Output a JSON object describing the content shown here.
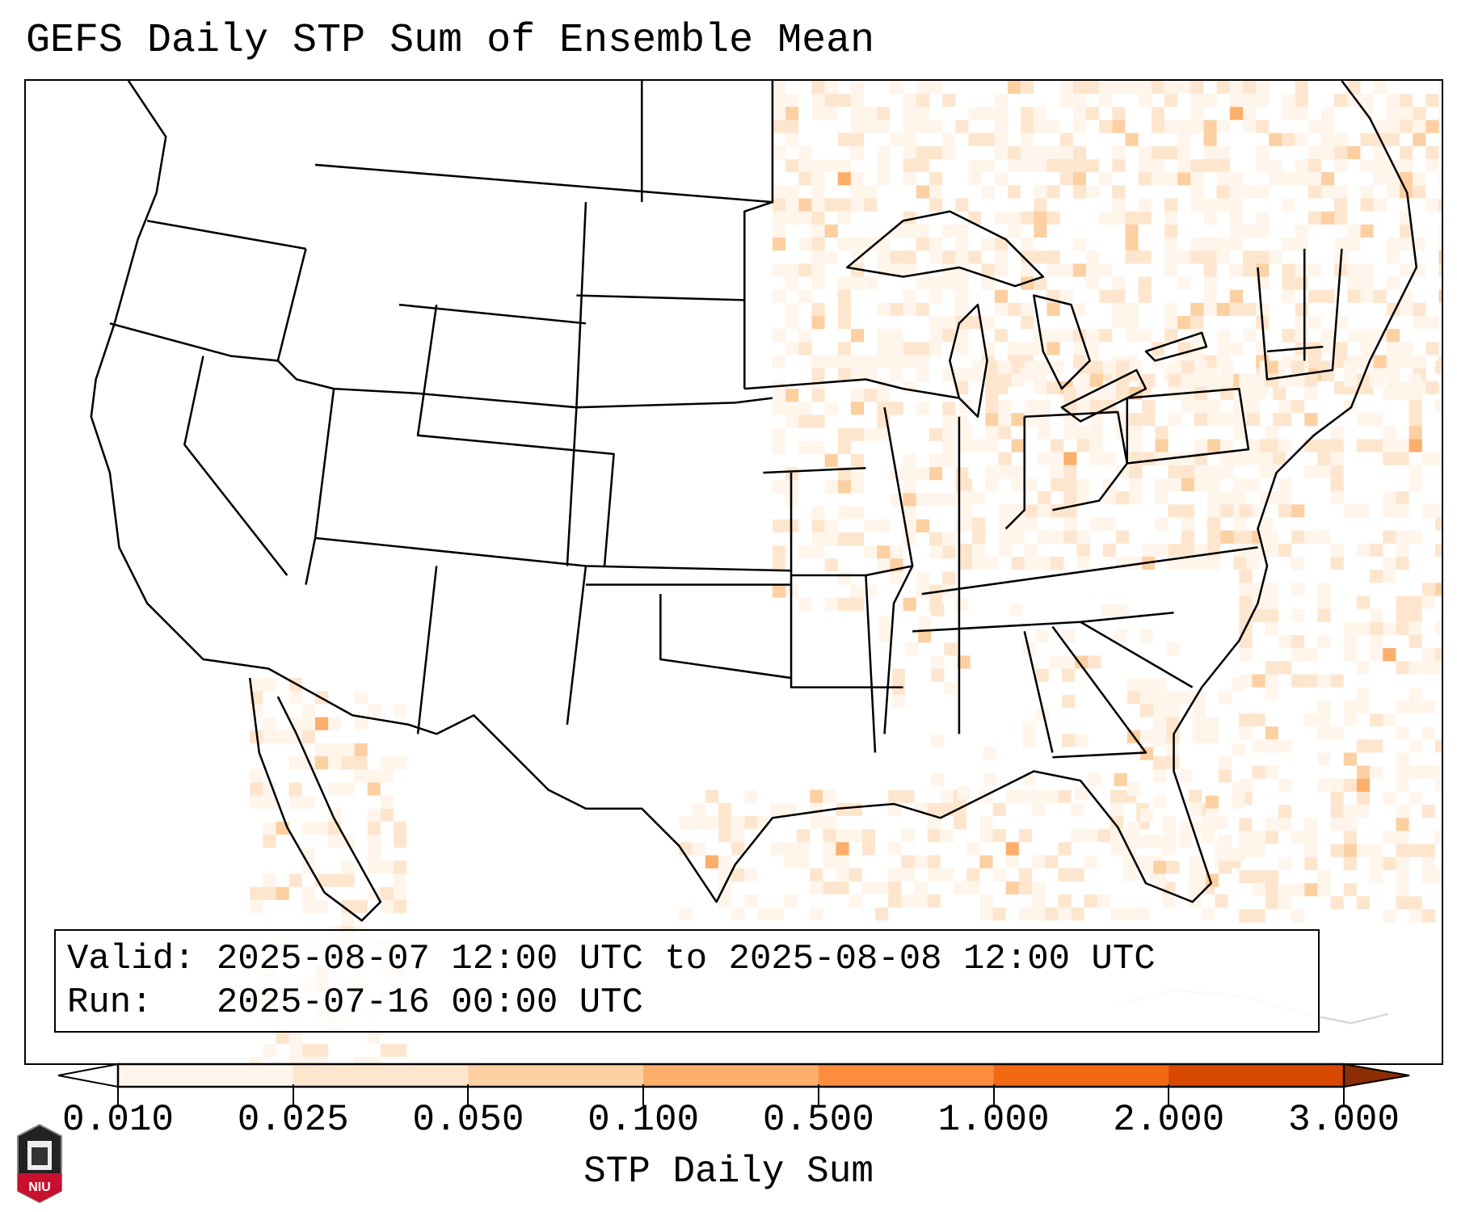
{
  "title": "GEFS Daily STP Sum of Ensemble Mean",
  "info": {
    "valid_label": "Valid:",
    "valid_value": "2025-08-07 12:00 UTC to 2025-08-08 12:00 UTC",
    "run_label": "Run:",
    "run_value": "2025-07-16 00:00 UTC"
  },
  "colorbar": {
    "label": "STP Daily Sum",
    "ticks": [
      "0.010",
      "0.025",
      "0.050",
      "0.100",
      "0.500",
      "1.000",
      "2.000",
      "3.000"
    ],
    "colors": [
      "#fff5eb",
      "#fee6ce",
      "#fdd0a2",
      "#fdae6b",
      "#fd8d3c",
      "#f16913",
      "#d94801"
    ],
    "under_color": "#ffffff",
    "over_color": "#8c2d04"
  },
  "logo": {
    "text": "NIU"
  }
}
